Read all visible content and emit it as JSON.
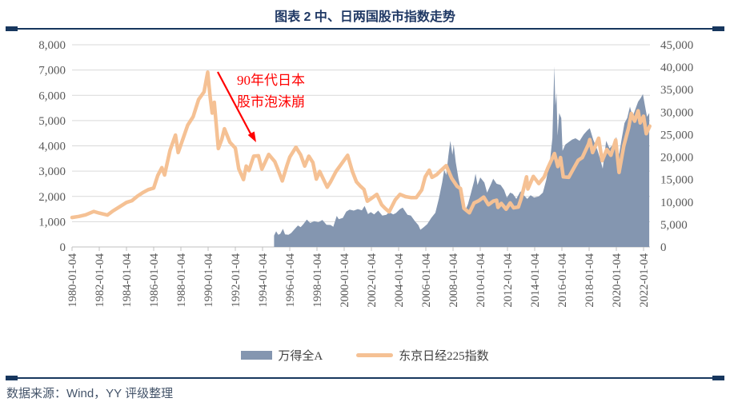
{
  "title": "图表 2 中、日两国股市指数走势",
  "source": "数据来源：Wind，YY 评级整理",
  "annotation": {
    "line1": "90年代日本",
    "line2": "股市泡沫崩"
  },
  "legend": {
    "area_label": "万得全A",
    "line_label": "东京日经225指数"
  },
  "colors": {
    "area": "#8496B0",
    "line": "#F5C194",
    "grid": "#D9D9D9",
    "axis": "#BFBFBF",
    "tick_text": "#595959",
    "annotation_red": "#FF0000",
    "title_navy": "#1F3864",
    "rule_navy": "#17375E",
    "source_text": "#44546A"
  },
  "chart_data": {
    "type": "area+line combo, dual axis",
    "title": "图表 2 中、日两国股市指数走势",
    "x_axis": {
      "tick_labels": [
        "1980-01-04",
        "1982-01-04",
        "1984-01-04",
        "1986-01-04",
        "1988-01-04",
        "1990-01-04",
        "1992-01-04",
        "1994-01-04",
        "1996-01-04",
        "1998-01-04",
        "2000-01-04",
        "2002-01-04",
        "2004-01-04",
        "2006-01-04",
        "2008-01-04",
        "2010-01-04",
        "2012-01-04",
        "2014-01-04",
        "2016-01-04",
        "2018-01-04",
        "2020-01-04",
        "2022-01-04"
      ],
      "tick_years": [
        1980,
        1982,
        1984,
        1986,
        1988,
        1990,
        1992,
        1994,
        1996,
        1998,
        2000,
        2002,
        2004,
        2006,
        2008,
        2010,
        2012,
        2014,
        2016,
        2018,
        2020,
        2022
      ],
      "x_range_years": [
        1980,
        2022.5
      ]
    },
    "y_axis_left": {
      "min": 0,
      "max": 8000,
      "step": 1000,
      "tick_labels": [
        "8,000",
        "7,000",
        "6,000",
        "5,000",
        "4,000",
        "3,000",
        "2,000",
        "1,000",
        "0"
      ]
    },
    "y_axis_right": {
      "min": 0,
      "max": 45000,
      "step": 5000,
      "tick_labels": [
        "45,000",
        "40,000",
        "35,000",
        "30,000",
        "25,000",
        "20,000",
        "15,000",
        "10,000",
        "5,000",
        "0"
      ]
    },
    "grid": "horizontal gridlines at left-axis major units",
    "legend_position": "bottom center",
    "series": [
      {
        "name": "万得全A",
        "type": "area",
        "axis": "left",
        "color": "#8496B0",
        "points": [
          [
            1994.85,
            450
          ],
          [
            1995.0,
            620
          ],
          [
            1995.15,
            480
          ],
          [
            1995.3,
            520
          ],
          [
            1995.5,
            720
          ],
          [
            1995.65,
            500
          ],
          [
            1995.9,
            480
          ],
          [
            1996.1,
            550
          ],
          [
            1996.35,
            700
          ],
          [
            1996.6,
            850
          ],
          [
            1996.8,
            780
          ],
          [
            1997.0,
            900
          ],
          [
            1997.25,
            1080
          ],
          [
            1997.5,
            950
          ],
          [
            1997.8,
            1020
          ],
          [
            1998.1,
            980
          ],
          [
            1998.4,
            1070
          ],
          [
            1998.7,
            880
          ],
          [
            1999.0,
            870
          ],
          [
            1999.2,
            800
          ],
          [
            1999.45,
            1230
          ],
          [
            1999.6,
            1100
          ],
          [
            1999.9,
            1150
          ],
          [
            2000.15,
            1400
          ],
          [
            2000.4,
            1480
          ],
          [
            2000.7,
            1440
          ],
          [
            2001.0,
            1500
          ],
          [
            2001.3,
            1450
          ],
          [
            2001.5,
            1620
          ],
          [
            2001.75,
            1300
          ],
          [
            2001.95,
            1380
          ],
          [
            2002.2,
            1290
          ],
          [
            2002.5,
            1440
          ],
          [
            2002.8,
            1240
          ],
          [
            2003.1,
            1270
          ],
          [
            2003.3,
            1380
          ],
          [
            2003.6,
            1290
          ],
          [
            2003.8,
            1340
          ],
          [
            2004.1,
            1500
          ],
          [
            2004.3,
            1560
          ],
          [
            2004.65,
            1270
          ],
          [
            2004.9,
            1240
          ],
          [
            2005.2,
            1020
          ],
          [
            2005.45,
            860
          ],
          [
            2005.6,
            680
          ],
          [
            2005.85,
            780
          ],
          [
            2006.1,
            900
          ],
          [
            2006.4,
            1150
          ],
          [
            2006.7,
            1350
          ],
          [
            2006.95,
            1900
          ],
          [
            2007.2,
            2550
          ],
          [
            2007.35,
            3050
          ],
          [
            2007.5,
            2850
          ],
          [
            2007.65,
            3600
          ],
          [
            2007.8,
            4200
          ],
          [
            2007.95,
            3650
          ],
          [
            2008.05,
            4050
          ],
          [
            2008.2,
            3350
          ],
          [
            2008.4,
            2700
          ],
          [
            2008.6,
            2200
          ],
          [
            2008.75,
            1700
          ],
          [
            2008.9,
            1450
          ],
          [
            2009.1,
            1700
          ],
          [
            2009.3,
            2100
          ],
          [
            2009.55,
            2600
          ],
          [
            2009.65,
            2900
          ],
          [
            2009.8,
            2450
          ],
          [
            2010.0,
            2750
          ],
          [
            2010.3,
            2550
          ],
          [
            2010.5,
            2150
          ],
          [
            2010.8,
            2500
          ],
          [
            2010.95,
            2700
          ],
          [
            2011.2,
            2500
          ],
          [
            2011.5,
            2450
          ],
          [
            2011.75,
            2250
          ],
          [
            2011.95,
            1950
          ],
          [
            2012.2,
            2150
          ],
          [
            2012.4,
            2100
          ],
          [
            2012.65,
            1900
          ],
          [
            2012.95,
            2200
          ],
          [
            2013.2,
            2050
          ],
          [
            2013.45,
            1900
          ],
          [
            2013.7,
            2050
          ],
          [
            2013.95,
            1950
          ],
          [
            2014.3,
            2000
          ],
          [
            2014.6,
            2150
          ],
          [
            2014.85,
            2650
          ],
          [
            2015.0,
            3100
          ],
          [
            2015.15,
            3550
          ],
          [
            2015.3,
            4300
          ],
          [
            2015.44,
            7150
          ],
          [
            2015.52,
            5600
          ],
          [
            2015.6,
            6100
          ],
          [
            2015.68,
            4400
          ],
          [
            2015.8,
            5300
          ],
          [
            2015.95,
            5100
          ],
          [
            2016.05,
            3800
          ],
          [
            2016.25,
            4050
          ],
          [
            2016.5,
            4150
          ],
          [
            2016.75,
            4250
          ],
          [
            2017.0,
            4300
          ],
          [
            2017.3,
            4200
          ],
          [
            2017.6,
            4450
          ],
          [
            2017.85,
            4600
          ],
          [
            2018.05,
            4700
          ],
          [
            2018.3,
            4250
          ],
          [
            2018.6,
            3850
          ],
          [
            2018.8,
            3500
          ],
          [
            2019.0,
            3100
          ],
          [
            2019.25,
            4200
          ],
          [
            2019.5,
            3900
          ],
          [
            2019.75,
            4050
          ],
          [
            2020.0,
            4350
          ],
          [
            2020.2,
            3650
          ],
          [
            2020.4,
            4300
          ],
          [
            2020.6,
            4900
          ],
          [
            2020.8,
            5100
          ],
          [
            2021.0,
            5550
          ],
          [
            2021.2,
            5150
          ],
          [
            2021.4,
            5450
          ],
          [
            2021.6,
            5750
          ],
          [
            2021.8,
            5900
          ],
          [
            2021.95,
            6050
          ],
          [
            2022.1,
            5600
          ],
          [
            2022.25,
            5150
          ],
          [
            2022.42,
            5300
          ]
        ]
      },
      {
        "name": "东京日经225指数",
        "type": "line",
        "axis": "right",
        "color": "#F5C194",
        "points": [
          [
            1980.0,
            6560
          ],
          [
            1980.5,
            6800
          ],
          [
            1981.0,
            7150
          ],
          [
            1981.6,
            7900
          ],
          [
            1982.0,
            7550
          ],
          [
            1982.6,
            7100
          ],
          [
            1983.0,
            8000
          ],
          [
            1983.5,
            8950
          ],
          [
            1984.0,
            9900
          ],
          [
            1984.4,
            10300
          ],
          [
            1984.8,
            11300
          ],
          [
            1985.2,
            12100
          ],
          [
            1985.6,
            12750
          ],
          [
            1986.0,
            13100
          ],
          [
            1986.3,
            15900
          ],
          [
            1986.6,
            17650
          ],
          [
            1986.8,
            16000
          ],
          [
            1987.2,
            21500
          ],
          [
            1987.6,
            24900
          ],
          [
            1987.8,
            21000
          ],
          [
            1988.1,
            23600
          ],
          [
            1988.5,
            27100
          ],
          [
            1988.9,
            29000
          ],
          [
            1989.3,
            32800
          ],
          [
            1989.7,
            34500
          ],
          [
            1989.97,
            38900
          ],
          [
            1990.15,
            33300
          ],
          [
            1990.3,
            29800
          ],
          [
            1990.45,
            32200
          ],
          [
            1990.75,
            21900
          ],
          [
            1991.0,
            23900
          ],
          [
            1991.2,
            26300
          ],
          [
            1991.6,
            23300
          ],
          [
            1992.0,
            22000
          ],
          [
            1992.25,
            17400
          ],
          [
            1992.6,
            15000
          ],
          [
            1992.8,
            18000
          ],
          [
            1993.0,
            17000
          ],
          [
            1993.35,
            20200
          ],
          [
            1993.7,
            20300
          ],
          [
            1993.95,
            17300
          ],
          [
            1994.45,
            20600
          ],
          [
            1994.9,
            19000
          ],
          [
            1995.1,
            17500
          ],
          [
            1995.45,
            14700
          ],
          [
            1995.8,
            18200
          ],
          [
            1996.0,
            20000
          ],
          [
            1996.45,
            22200
          ],
          [
            1996.8,
            20500
          ],
          [
            1997.1,
            18000
          ],
          [
            1997.4,
            20200
          ],
          [
            1997.7,
            18800
          ],
          [
            1997.95,
            15100
          ],
          [
            1998.2,
            16800
          ],
          [
            1998.75,
            13300
          ],
          [
            1999.0,
            14500
          ],
          [
            1999.4,
            16800
          ],
          [
            1999.9,
            18900
          ],
          [
            2000.25,
            20400
          ],
          [
            2000.6,
            16800
          ],
          [
            2000.9,
            14500
          ],
          [
            2001.2,
            13500
          ],
          [
            2001.45,
            12800
          ],
          [
            2001.7,
            10200
          ],
          [
            2001.95,
            10700
          ],
          [
            2002.4,
            11700
          ],
          [
            2002.75,
            9400
          ],
          [
            2003.0,
            8600
          ],
          [
            2003.3,
            7800
          ],
          [
            2003.75,
            10500
          ],
          [
            2004.1,
            11700
          ],
          [
            2004.5,
            11200
          ],
          [
            2004.9,
            11000
          ],
          [
            2005.3,
            11000
          ],
          [
            2005.7,
            12700
          ],
          [
            2005.95,
            15600
          ],
          [
            2006.25,
            17100
          ],
          [
            2006.45,
            15500
          ],
          [
            2006.8,
            16100
          ],
          [
            2007.1,
            17000
          ],
          [
            2007.5,
            18100
          ],
          [
            2007.9,
            15300
          ],
          [
            2008.3,
            13500
          ],
          [
            2008.55,
            13000
          ],
          [
            2008.8,
            8600
          ],
          [
            2009.2,
            7600
          ],
          [
            2009.55,
            9800
          ],
          [
            2009.9,
            10300
          ],
          [
            2010.25,
            11100
          ],
          [
            2010.6,
            9400
          ],
          [
            2010.95,
            10200
          ],
          [
            2011.2,
            10400
          ],
          [
            2011.3,
            8800
          ],
          [
            2011.55,
            9700
          ],
          [
            2011.9,
            8400
          ],
          [
            2012.2,
            9800
          ],
          [
            2012.45,
            8700
          ],
          [
            2012.8,
            8900
          ],
          [
            2013.0,
            10700
          ],
          [
            2013.4,
            15600
          ],
          [
            2013.5,
            12900
          ],
          [
            2013.9,
            15700
          ],
          [
            2014.3,
            14100
          ],
          [
            2014.7,
            15600
          ],
          [
            2014.95,
            17500
          ],
          [
            2015.45,
            20800
          ],
          [
            2015.7,
            17900
          ],
          [
            2015.9,
            19900
          ],
          [
            2016.1,
            15600
          ],
          [
            2016.5,
            15500
          ],
          [
            2016.85,
            17400
          ],
          [
            2017.2,
            19300
          ],
          [
            2017.5,
            19900
          ],
          [
            2017.95,
            22900
          ],
          [
            2018.05,
            23900
          ],
          [
            2018.25,
            21000
          ],
          [
            2018.7,
            24200
          ],
          [
            2018.95,
            19200
          ],
          [
            2019.3,
            21700
          ],
          [
            2019.6,
            20400
          ],
          [
            2019.95,
            23800
          ],
          [
            2020.2,
            16600
          ],
          [
            2020.55,
            22500
          ],
          [
            2020.9,
            26500
          ],
          [
            2021.1,
            29700
          ],
          [
            2021.35,
            28000
          ],
          [
            2021.6,
            30300
          ],
          [
            2021.75,
            27600
          ],
          [
            2022.0,
            29100
          ],
          [
            2022.2,
            25200
          ],
          [
            2022.45,
            26900
          ]
        ]
      }
    ],
    "annotations": [
      {
        "text": "90年代日本股市泡沫崩",
        "color": "#FF0000",
        "arrow_from_year": 1990.7,
        "arrow_to_year": 1993.3,
        "note": "red arrow pointing from 1990 Nikkei peak down to the post-bubble level"
      }
    ]
  }
}
